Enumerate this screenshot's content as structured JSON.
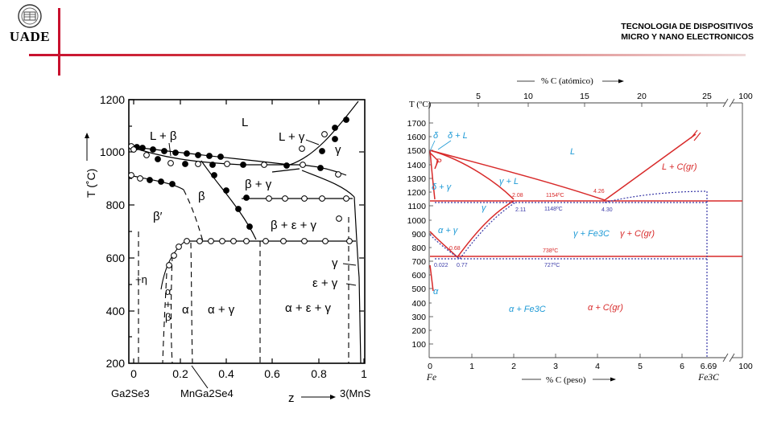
{
  "brand": {
    "name": "UADE"
  },
  "header": {
    "line1": "TECNOLOGIA DE DISPOSITIVOS",
    "line2": "MICRO Y NANO ELECTRONICOS"
  },
  "left_diagram": {
    "y_axis_label": "T (˚C)",
    "y_ticks": [
      "1200",
      "1000",
      "800",
      "600",
      "400",
      "200"
    ],
    "x_ticks": [
      "0",
      "0.2",
      "0.4",
      "0.6",
      "0.8",
      "1"
    ],
    "x_axis_label": "z",
    "x_left_label": "Ga2Se3",
    "x_mid_label": "MnGa2Se4",
    "x_right_label": "3(MnSe)",
    "regions": {
      "L": "L",
      "L_beta": "L + β",
      "L_gamma": "L + γ",
      "gamma_top": "γ",
      "beta": "β",
      "beta_gamma": "β + γ",
      "beta_eps_gamma": "β + ε + γ",
      "beta_prime": "β′",
      "gamma_right": "γ",
      "eps_gamma": "ε + γ",
      "alpha_gamma": "α + γ",
      "alpha_eps_gamma": "α + ε + γ",
      "alpha": "α",
      "alpha_small": "α",
      "plus": "+",
      "beta_small": "β",
      "eta": "+η"
    }
  },
  "right_diagram": {
    "top_axis_label": "% C (atómico)",
    "top_ticks": [
      "5",
      "10",
      "15",
      "20",
      "25",
      "100"
    ],
    "y_axis_label": "T (ºC)",
    "y_ticks": [
      "1700",
      "1600",
      "1500",
      "1400",
      "1300",
      "1200",
      "1100",
      "1000",
      "900",
      "800",
      "700",
      "600",
      "500",
      "400",
      "300",
      "200",
      "100"
    ],
    "x_ticks": [
      "0",
      "1",
      "2",
      "3",
      "4",
      "5",
      "6",
      "6.69",
      "100"
    ],
    "x_axis_label": "% C (peso)",
    "x_left_label": "Fe",
    "x_right_label": "Fe3C",
    "regions": {
      "delta": "δ",
      "delta_L": "δ   + L",
      "delta_gamma": "δ + γ",
      "L": "L",
      "gamma_L": "γ + L",
      "L_C": "L + C(gr)",
      "gamma": "γ",
      "alpha_gamma": "α + γ",
      "gamma_Fe3C": "γ + Fe3C",
      "gamma_C": "γ   + C(gr)",
      "alpha": "α",
      "alpha_Fe3C": "α   + Fe3C",
      "alpha_C": "α + C(gr)",
      "p": "P"
    },
    "points": {
      "c208": "2.08",
      "c211": "2.11",
      "t1154": "1154ºC",
      "t1148": "1148ºC",
      "c426": "4.26",
      "c430": "4.30",
      "c068": "0.68",
      "c077": "0.77",
      "c0022": "0.022",
      "t738": "738ºC",
      "t727": "727ºC"
    },
    "colors": {
      "stable": "#d82a2a",
      "metastable": "#3a3aa8",
      "labels_blue": "#1e9ad6"
    }
  }
}
